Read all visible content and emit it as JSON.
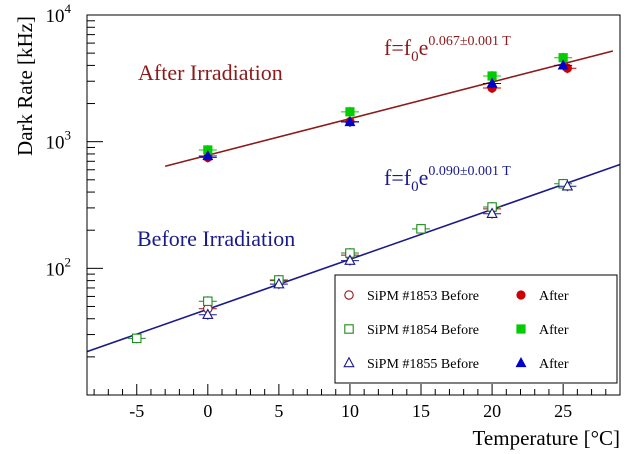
{
  "chart_data": {
    "type": "scatter",
    "xlabel": "Temperature [°C]",
    "ylabel": "Dark Rate [kHz]",
    "xlim": [
      -8.5,
      29
    ],
    "ylim": [
      10,
      10000
    ],
    "yscale": "log",
    "grid": false,
    "legend_position": "bottom-right",
    "x_ticks": [
      {
        "value": -5,
        "label": "-5"
      },
      {
        "value": 0,
        "label": "0"
      },
      {
        "value": 5,
        "label": "5"
      },
      {
        "value": 10,
        "label": "10"
      },
      {
        "value": 15,
        "label": "15"
      },
      {
        "value": 20,
        "label": "20"
      },
      {
        "value": 25,
        "label": "25"
      }
    ],
    "y_ticks": [
      {
        "value": 100,
        "base": "10",
        "exp": "2"
      },
      {
        "value": 1000,
        "base": "10",
        "exp": "3"
      },
      {
        "value": 10000,
        "base": "10",
        "exp": "4"
      }
    ],
    "annotations": [
      {
        "id": "after",
        "text": "After Irradiation",
        "color": "#8b1a1a"
      },
      {
        "id": "before",
        "text": "Before Irradiation",
        "color": "#1a1a8b"
      }
    ],
    "fit_labels": [
      {
        "id": "after",
        "prefix": "f=f",
        "sub": "0",
        "base": "e",
        "exp": "0.067±0.001 T",
        "color": "#8b1a1a"
      },
      {
        "id": "before",
        "prefix": "f=f",
        "sub": "0",
        "base": "e",
        "exp": "0.090±0.001 T",
        "color": "#1a1a8b"
      }
    ],
    "fits": [
      {
        "id": "after",
        "x_range": [
          -3,
          28.5
        ],
        "y_range": [
          640,
          5200
        ],
        "color": "#8b1a1a"
      },
      {
        "id": "before",
        "x_range": [
          -8.5,
          29
        ],
        "y_range": [
          22,
          660
        ],
        "color": "#1a1a8b"
      }
    ],
    "series": [
      {
        "name": "SiPM #1853 Before",
        "marker": "open-circle",
        "color": "#8b1a1a",
        "x": [
          0,
          5,
          10,
          20
        ],
        "y": [
          48,
          80,
          127,
          295
        ]
      },
      {
        "name": "SiPM #1854 Before",
        "marker": "open-square",
        "color": "#1e8a1e",
        "x": [
          -5,
          0,
          5,
          10,
          15,
          20,
          25
        ],
        "y": [
          28,
          55,
          81,
          132,
          205,
          305,
          465
        ]
      },
      {
        "name": "SiPM #1855 Before",
        "marker": "open-triangle",
        "color": "#1a1a8b",
        "x": [
          0,
          5,
          10,
          20,
          25.3
        ],
        "y": [
          43,
          75,
          115,
          270,
          445
        ]
      },
      {
        "name": "After",
        "marker": "filled-circle",
        "color": "#cc0000",
        "x": [
          0,
          10,
          20,
          25.3
        ],
        "y": [
          750,
          1440,
          2650,
          3800
        ]
      },
      {
        "name": "After",
        "marker": "filled-square",
        "color": "#00cc00",
        "x": [
          0,
          10,
          20,
          25
        ],
        "y": [
          860,
          1720,
          3300,
          4600
        ]
      },
      {
        "name": "After",
        "marker": "filled-triangle",
        "color": "#0000cc",
        "x": [
          0,
          10,
          20,
          25
        ],
        "y": [
          770,
          1430,
          2880,
          4000
        ]
      }
    ]
  }
}
